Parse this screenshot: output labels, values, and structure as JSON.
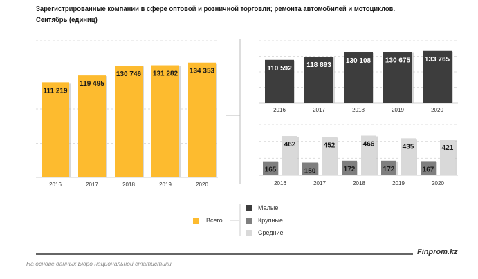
{
  "title_line1": "Зарегистрированные компании в сфере оптовой и розничной торговли; ремонта автомобилей и мотоциклов.",
  "title_line2": "Сентябрь  (единиц)",
  "brand": "Finprom.kz",
  "source": "На основе данных Бюро национальной статистики",
  "colors": {
    "total": "#FDBB2F",
    "small": "#3D3D3D",
    "large": "#7F7F7F",
    "medium": "#D9D9D9"
  },
  "legend": {
    "total": "Всего",
    "small": "Малые",
    "large": "Крупные",
    "medium": "Средние"
  },
  "chart_data": [
    {
      "type": "bar",
      "title": "Всего",
      "categories": [
        "2016",
        "2017",
        "2018",
        "2019",
        "2020"
      ],
      "values": [
        111219,
        119495,
        130746,
        131282,
        134353
      ],
      "labels": [
        "111 219",
        "119 495",
        "130 746",
        "131 282",
        "134 353"
      ],
      "ylim": [
        0,
        160000
      ],
      "ystep": 40000,
      "grid": true
    },
    {
      "type": "bar",
      "title": "Малые",
      "categories": [
        "2016",
        "2017",
        "2018",
        "2019",
        "2020"
      ],
      "values": [
        110592,
        118893,
        130108,
        130675,
        133765
      ],
      "labels": [
        "110 592",
        "118 893",
        "130 108",
        "130 675",
        "133 765"
      ],
      "ylim": [
        0,
        160000
      ],
      "ystep": 40000,
      "grid": true
    },
    {
      "type": "bar",
      "categories": [
        "2016",
        "2017",
        "2018",
        "2019",
        "2020"
      ],
      "series": [
        {
          "name": "Крупные",
          "values": [
            165,
            150,
            172,
            172,
            167
          ],
          "labels": [
            "165",
            "150",
            "172",
            "172",
            "167"
          ]
        },
        {
          "name": "Средние",
          "values": [
            462,
            452,
            466,
            435,
            421
          ],
          "labels": [
            "462",
            "452",
            "466",
            "435",
            "421"
          ]
        }
      ],
      "ylim": [
        0,
        600
      ],
      "ystep": 200,
      "grid": true
    }
  ]
}
